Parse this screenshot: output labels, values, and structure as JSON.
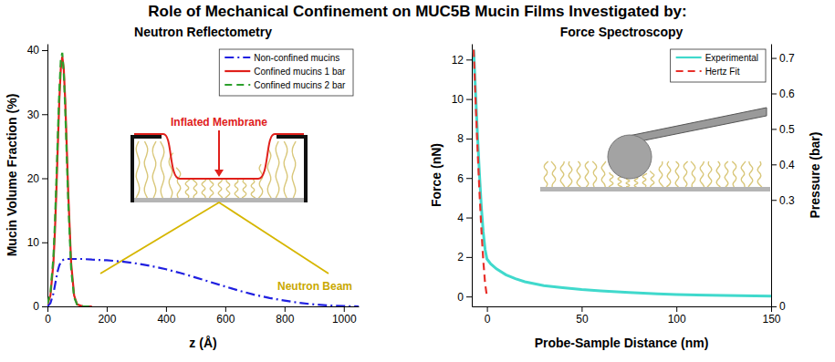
{
  "title": "Role of Mechanical Confinement on MUC5B Mucin Films Investigated by:",
  "chart_data": [
    {
      "type": "line",
      "title": "Neutron Reflectometry",
      "x_label": "z (Å)",
      "y_label": "Mucin Volume Fraction (%)",
      "x": [
        0,
        10,
        20,
        25,
        30,
        35,
        40,
        45,
        50,
        55,
        60,
        65,
        70,
        80,
        90,
        100,
        120,
        150,
        200,
        250,
        300,
        350,
        400,
        450,
        500,
        550,
        600,
        650,
        700,
        750,
        800,
        850,
        900,
        950,
        1000,
        1050
      ],
      "series": [
        {
          "name": "Non-confined mucins",
          "color": "#2020e0",
          "line_style": "dashdot",
          "values": [
            0,
            0.5,
            2,
            3.2,
            4.5,
            5.6,
            6.4,
            6.9,
            7.2,
            7.3,
            7.4,
            7.4,
            7.4,
            7.4,
            7.4,
            7.4,
            7.4,
            7.3,
            7.2,
            7.0,
            6.7,
            6.3,
            5.8,
            5.2,
            4.5,
            3.8,
            3.1,
            2.4,
            1.8,
            1.3,
            0.9,
            0.55,
            0.3,
            0.15,
            0.05,
            0
          ]
        },
        {
          "name": "Confined mucins 1 bar",
          "color": "#e0201b",
          "line_style": "solid",
          "values": [
            0.3,
            1.7,
            6.7,
            11.5,
            17.9,
            25.1,
            32.1,
            37.1,
            39,
            37.1,
            32.1,
            25.1,
            17.9,
            6.7,
            1.7,
            0.3,
            0,
            0,
            null,
            null,
            null,
            null,
            null,
            null,
            null,
            null,
            null,
            null,
            null,
            null,
            null,
            null,
            null,
            null,
            null,
            null
          ]
        },
        {
          "name": "Confined mucins 2 bar",
          "color": "#2ca02c",
          "line_style": "dashed",
          "values": [
            0.4,
            2.1,
            7.6,
            12.8,
            19.5,
            26.8,
            33.6,
            38.4,
            39.6,
            36.5,
            30.8,
            23.6,
            16.5,
            5.8,
            1.4,
            0.3,
            0,
            0,
            null,
            null,
            null,
            null,
            null,
            null,
            null,
            null,
            null,
            null,
            null,
            null,
            null,
            null,
            null,
            null,
            null,
            null
          ]
        }
      ],
      "xlim": [
        0,
        1050
      ],
      "xticks": [
        0,
        200,
        400,
        600,
        800,
        1000
      ],
      "ylim": [
        0,
        41
      ],
      "yticks": [
        0,
        10,
        20,
        30,
        40
      ],
      "grid": false,
      "legend": "upper right",
      "annotations": [
        {
          "text": "Inflated Membrane"
        },
        {
          "text": "Neutron Beam"
        }
      ]
    },
    {
      "type": "line",
      "title": "Force Spectroscopy",
      "x_label": "Probe-Sample Distance (nm)",
      "y_label": "Force (nN)",
      "y2_label": "Pressure (bar)",
      "series": [
        {
          "name": "Experimental",
          "color": "#40d9cc",
          "line_style": "solid",
          "x": [
            -7,
            -6,
            -5,
            -4,
            -3,
            -2,
            -1,
            0,
            2,
            5,
            10,
            15,
            20,
            30,
            40,
            50,
            60,
            75,
            90,
            100,
            125,
            150
          ],
          "values": [
            12.5,
            10.3,
            8.2,
            6.3,
            4.6,
            3.3,
            2.4,
            1.9,
            1.65,
            1.4,
            1.1,
            0.9,
            0.75,
            0.55,
            0.45,
            0.35,
            0.28,
            0.2,
            0.13,
            0.1,
            0.05,
            0.02
          ]
        },
        {
          "name": "Hertz Fit",
          "color": "#e8302a",
          "line_style": "dashed",
          "x": [
            -7,
            -6,
            -5,
            -4,
            -3,
            -2,
            -1,
            0
          ],
          "values": [
            12.5,
            9.92,
            7.55,
            5.4,
            3.51,
            1.91,
            0.67,
            0
          ]
        }
      ],
      "xlim": [
        -8,
        150
      ],
      "xticks": [
        0,
        50,
        100,
        150
      ],
      "ylim": [
        -0.5,
        12.8
      ],
      "yticks": [
        0,
        2,
        4,
        6,
        8,
        10,
        12
      ],
      "y2lim": [
        0,
        0.74
      ],
      "y2ticks": [
        0,
        0.3,
        0.4,
        0.5,
        0.6,
        0.7
      ],
      "grid": false,
      "legend": "upper right"
    }
  ]
}
